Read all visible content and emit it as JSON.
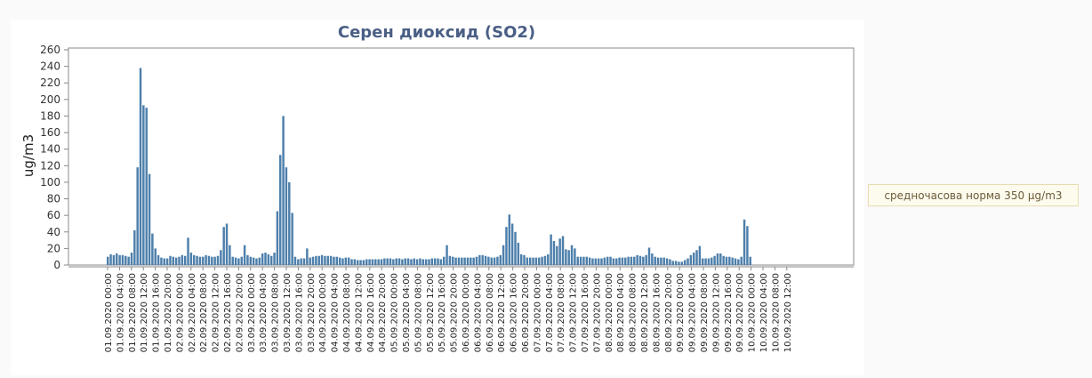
{
  "chart_data": {
    "type": "bar",
    "title": "Серен диоксид (SO2)",
    "ylabel": "ug/m3",
    "xlabel": "",
    "ylim": [
      0,
      260
    ],
    "yticks": [
      0,
      20,
      40,
      60,
      80,
      100,
      120,
      140,
      160,
      180,
      200,
      220,
      240,
      260
    ],
    "grid": false,
    "bar_color": "#4d7fab",
    "x_tick_labels": [
      "01.09.2020 00:00",
      "01.09.2020 04:00",
      "01.09.2020 08:00",
      "01.09.2020 12:00",
      "01.09.2020 16:00",
      "01.09.2020 20:00",
      "02.09.2020 00:00",
      "02.09.2020 04:00",
      "02.09.2020 08:00",
      "02.09.2020 12:00",
      "02.09.2020 16:00",
      "02.09.2020 20:00",
      "03.09.2020 00:00",
      "03.09.2020 04:00",
      "03.09.2020 08:00",
      "03.09.2020 12:00",
      "03.09.2020 16:00",
      "03.09.2020 20:00",
      "04.09.2020 00:00",
      "04.09.2020 04:00",
      "04.09.2020 08:00",
      "04.09.2020 12:00",
      "04.09.2020 16:00",
      "04.09.2020 20:00",
      "05.09.2020 00:00",
      "05.09.2020 04:00",
      "05.09.2020 08:00",
      "05.09.2020 12:00",
      "05.09.2020 16:00",
      "05.09.2020 20:00",
      "06.09.2020 00:00",
      "06.09.2020 04:00",
      "06.09.2020 08:00",
      "06.09.2020 12:00",
      "06.09.2020 16:00",
      "06.09.2020 20:00",
      "07.09.2020 00:00",
      "07.09.2020 04:00",
      "07.09.2020 08:00",
      "07.09.2020 12:00",
      "07.09.2020 16:00",
      "07.09.2020 20:00",
      "08.09.2020 00:00",
      "08.09.2020 04:00",
      "08.09.2020 08:00",
      "08.09.2020 12:00",
      "08.09.2020 16:00",
      "08.09.2020 20:00",
      "09.09.2020 00:00",
      "09.09.2020 04:00",
      "09.09.2020 08:00",
      "09.09.2020 12:00",
      "09.09.2020 16:00",
      "09.09.2020 20:00",
      "10.09.2020 00:00",
      "10.09.2020 04:00",
      "10.09.2020 08:00",
      "10.09.2020 12:00"
    ],
    "values": [
      10,
      13,
      12,
      14,
      12,
      12,
      11,
      10,
      15,
      42,
      118,
      238,
      193,
      190,
      110,
      38,
      20,
      12,
      9,
      8,
      8,
      11,
      10,
      9,
      10,
      12,
      11,
      33,
      15,
      12,
      11,
      10,
      10,
      12,
      11,
      10,
      10,
      11,
      18,
      46,
      50,
      24,
      10,
      9,
      8,
      10,
      24,
      12,
      10,
      9,
      8,
      9,
      14,
      15,
      13,
      11,
      15,
      65,
      133,
      180,
      118,
      100,
      63,
      10,
      7,
      8,
      8,
      20,
      9,
      10,
      11,
      11,
      12,
      11,
      11,
      11,
      10,
      10,
      9,
      8,
      9,
      9,
      7,
      7,
      6,
      6,
      6,
      7,
      7,
      7,
      7,
      7,
      7,
      8,
      8,
      8,
      7,
      8,
      8,
      7,
      8,
      8,
      7,
      8,
      7,
      8,
      7,
      7,
      7,
      8,
      8,
      8,
      7,
      10,
      24,
      11,
      10,
      9,
      9,
      9,
      9,
      9,
      9,
      9,
      10,
      12,
      12,
      11,
      10,
      9,
      9,
      10,
      12,
      24,
      46,
      61,
      50,
      40,
      27,
      13,
      12,
      9,
      9,
      9,
      9,
      9,
      10,
      11,
      13,
      37,
      29,
      23,
      32,
      35,
      19,
      18,
      24,
      20,
      10,
      10,
      10,
      10,
      9,
      8,
      8,
      8,
      8,
      9,
      10,
      10,
      8,
      8,
      9,
      9,
      9,
      10,
      10,
      10,
      12,
      11,
      10,
      12,
      21,
      14,
      10,
      9,
      9,
      9,
      8,
      7,
      5,
      5,
      4,
      4,
      6,
      8,
      12,
      15,
      18,
      23,
      8,
      8,
      8,
      9,
      11,
      14,
      14,
      11,
      10,
      10,
      9,
      8,
      7,
      10,
      55,
      47,
      10
    ]
  },
  "norm_note": "средночасова норма 350 µg/m3"
}
